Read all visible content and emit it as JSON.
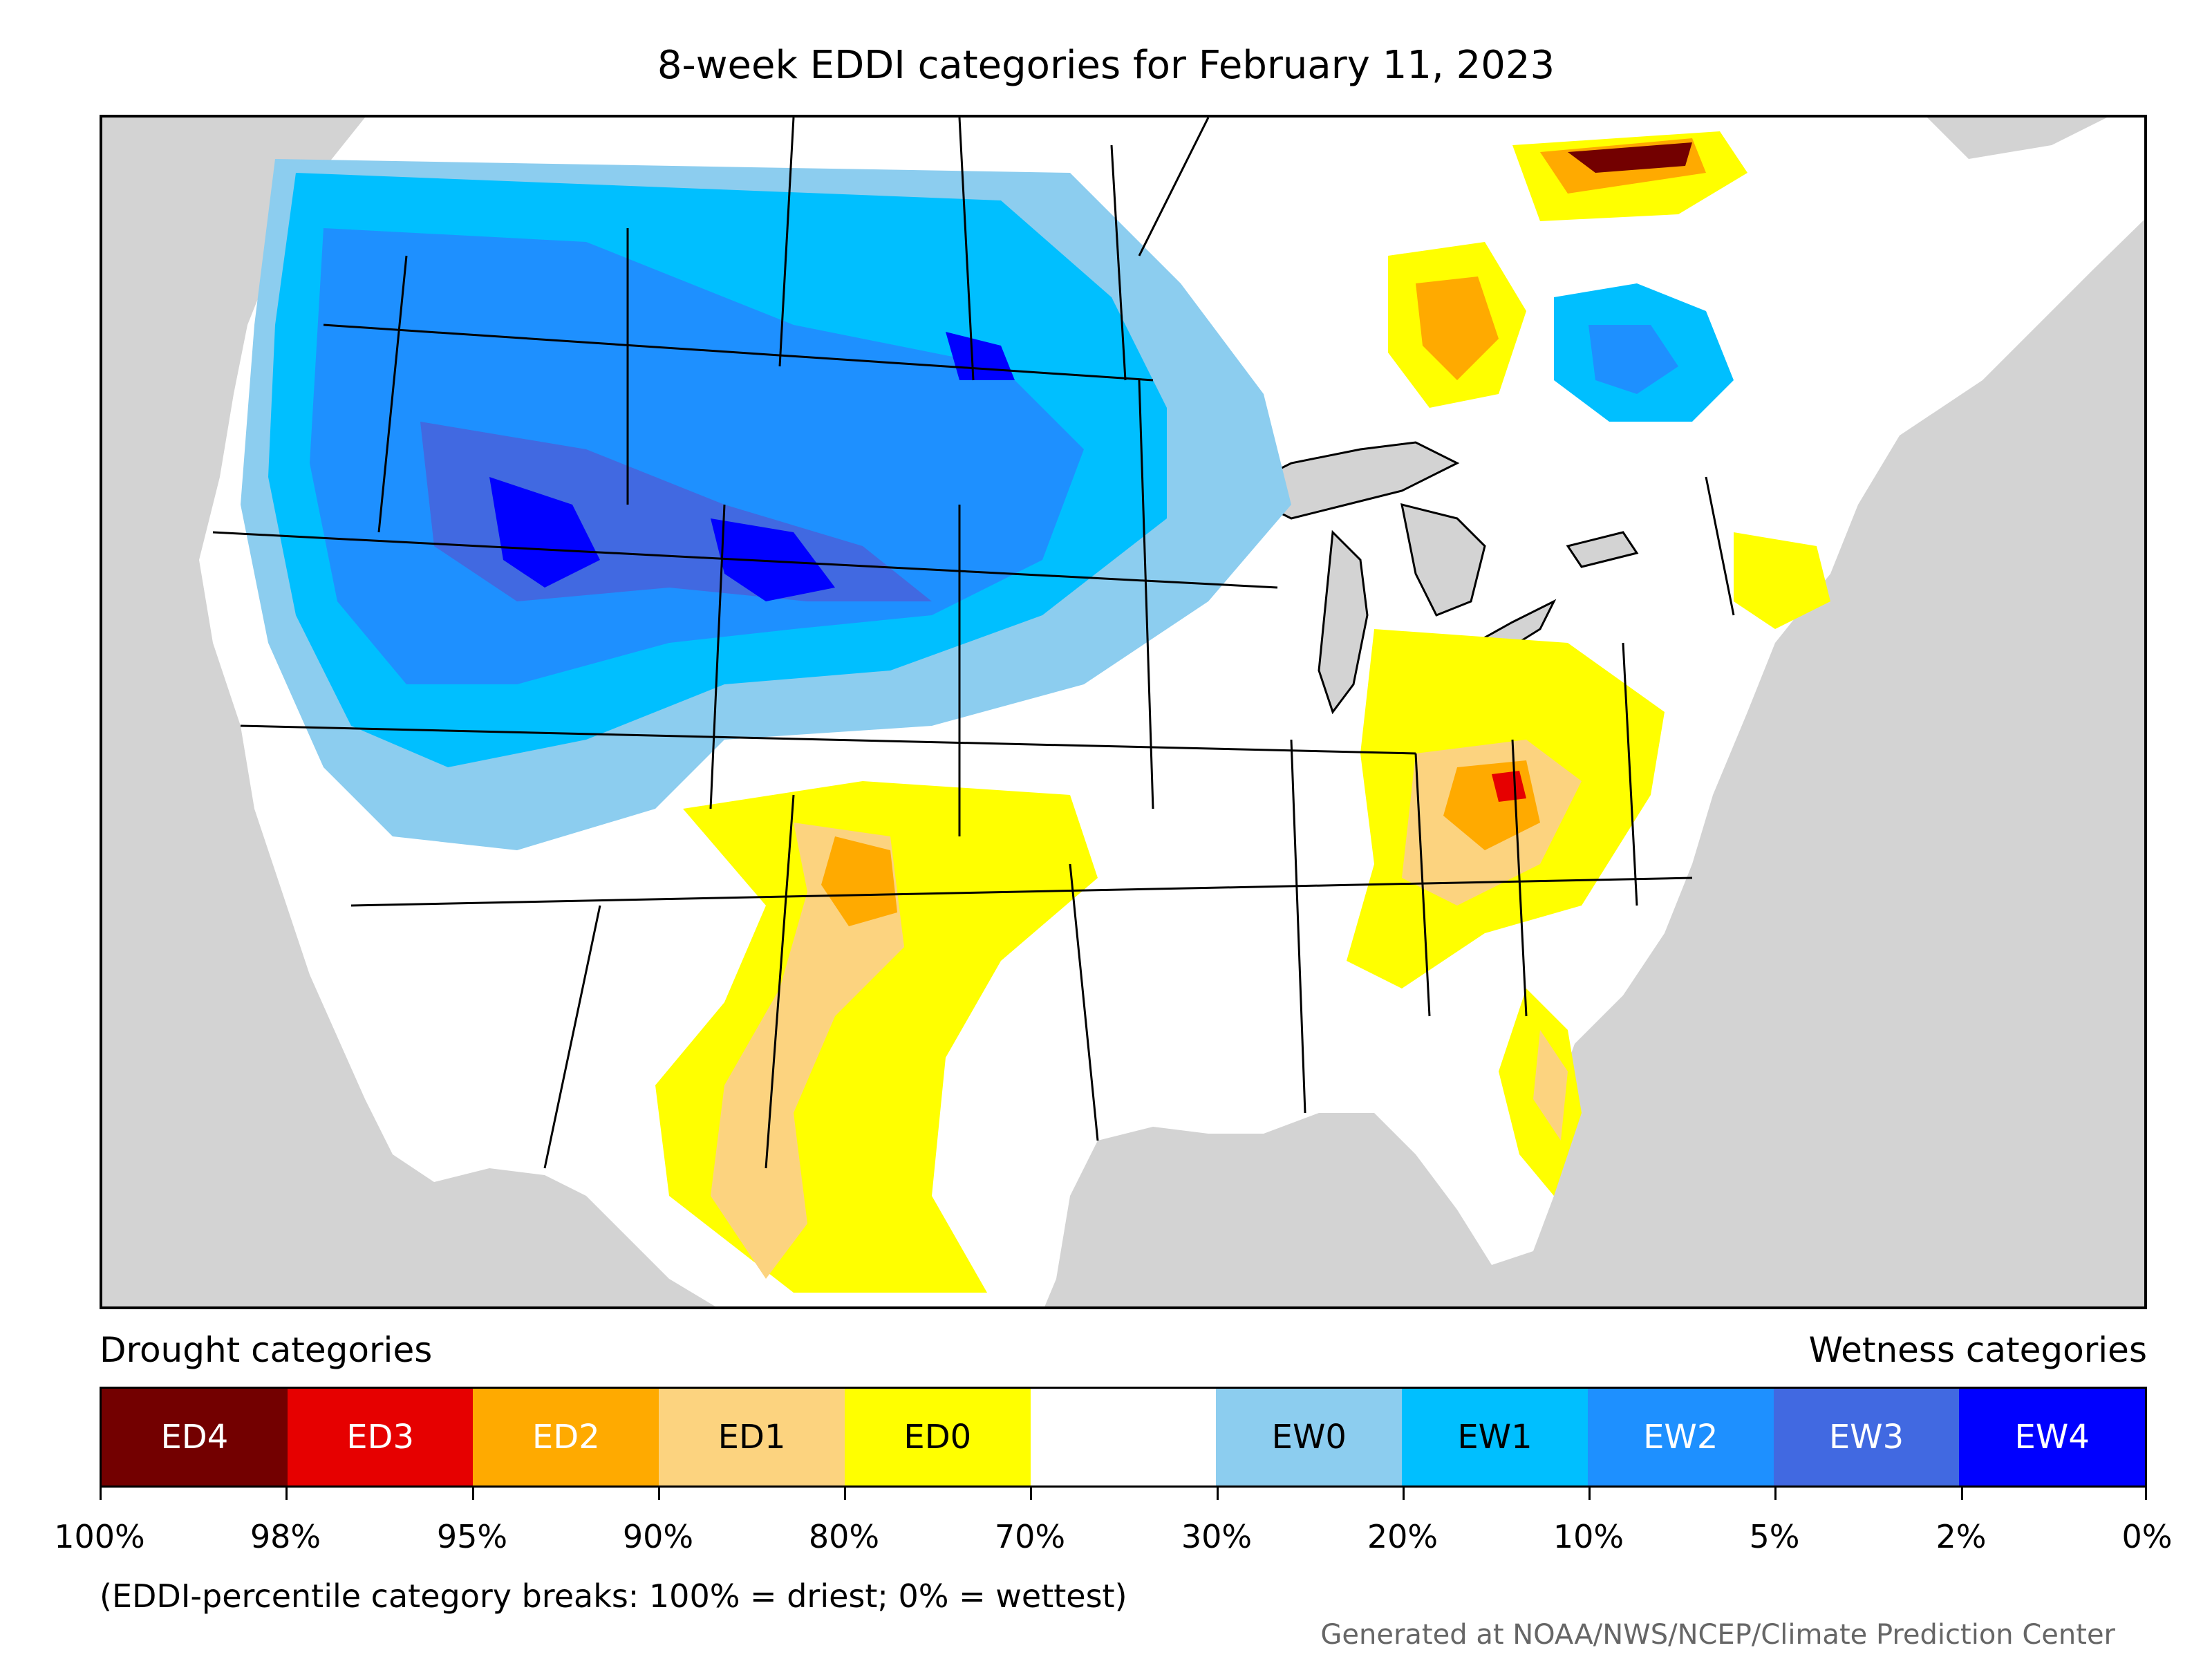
{
  "title": "8-week EDDI categories for February 11, 2023",
  "legend": {
    "drought_label": "Drought categories",
    "wetness_label": "Wetness categories",
    "categories": [
      {
        "label": "ED4",
        "color": "#730000",
        "text_color": "#ffffff"
      },
      {
        "label": "ED3",
        "color": "#e60000",
        "text_color": "#ffffff"
      },
      {
        "label": "ED2",
        "color": "#ffaa00",
        "text_color": "#ffffff"
      },
      {
        "label": "ED1",
        "color": "#fcd37f",
        "text_color": "#000000"
      },
      {
        "label": "ED0",
        "color": "#ffff00",
        "text_color": "#000000"
      },
      {
        "label": "",
        "color": "#ffffff",
        "text_color": "#000000"
      },
      {
        "label": "EW0",
        "color": "#8ccdef",
        "text_color": "#000000"
      },
      {
        "label": "EW1",
        "color": "#00bfff",
        "text_color": "#000000"
      },
      {
        "label": "EW2",
        "color": "#1e90ff",
        "text_color": "#ffffff"
      },
      {
        "label": "EW3",
        "color": "#4169e1",
        "text_color": "#ffffff"
      },
      {
        "label": "EW4",
        "color": "#0000ff",
        "text_color": "#ffffff"
      }
    ],
    "tick_labels": [
      "100%",
      "98%",
      "95%",
      "90%",
      "80%",
      "70%",
      "30%",
      "20%",
      "10%",
      "5%",
      "2%",
      "0%"
    ]
  },
  "note": "(EDDI-percentile category breaks: 100% = driest; 0% = wettest)",
  "credit": "Generated at NOAA/NWS/NCEP/Climate Prediction Center",
  "colors": {
    "land": "#ffffff",
    "ocean": "#d3d3d3",
    "border": "#000000"
  }
}
